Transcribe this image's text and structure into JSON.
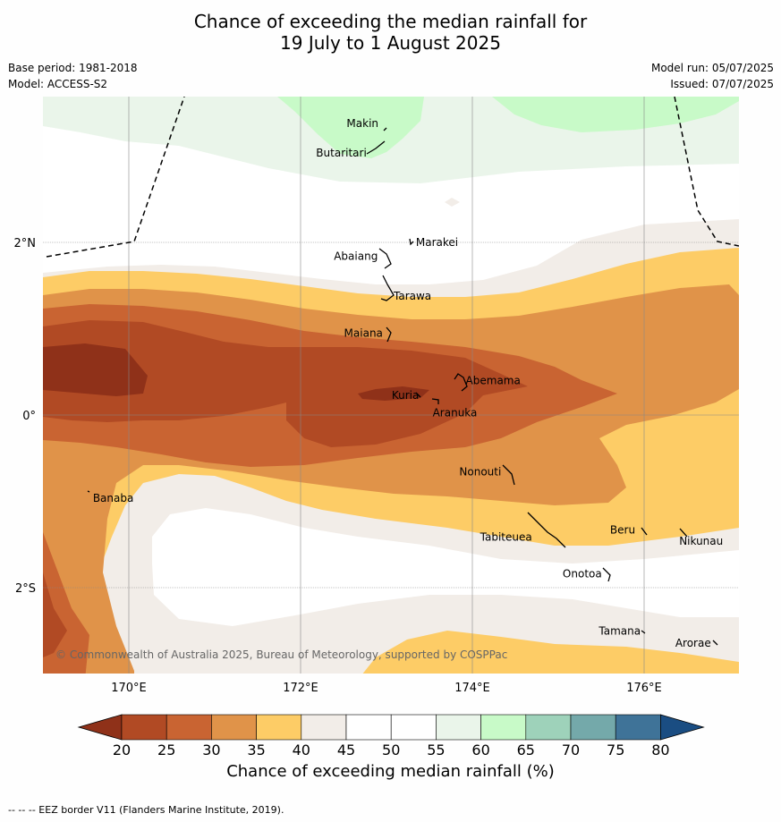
{
  "title_line1": "Chance of exceeding the median rainfall for",
  "title_line2": "19 July to 1 August 2025",
  "meta_left": [
    "Base period: 1981-2018",
    "Model: ACCESS-S2"
  ],
  "meta_right": [
    "Model run: 05/07/2025",
    "Issued: 07/07/2025"
  ],
  "copyright": "© Commonwealth of Australia 2025, Bureau of Meteorology, supported by COSPPac",
  "lon_ticks": [
    "170°E",
    "172°E",
    "174°E",
    "176°E"
  ],
  "lat_ticks": [
    "2°N",
    "0°",
    "2°S"
  ],
  "places": [
    {
      "name": "Makin",
      "lon": 172.99,
      "lat": 3.38
    },
    {
      "name": "Butaritari",
      "lon": 172.8,
      "lat": 3.08
    },
    {
      "name": "Marakei",
      "lon": 173.28,
      "lat": 2.0
    },
    {
      "name": "Abaiang",
      "lon": 172.92,
      "lat": 1.84
    },
    {
      "name": "Tarawa",
      "lon": 173.0,
      "lat": 1.38
    },
    {
      "name": "Maiana",
      "lon": 173.02,
      "lat": 0.95
    },
    {
      "name": "Abemama",
      "lon": 173.86,
      "lat": 0.4
    },
    {
      "name": "Kuria",
      "lon": 173.42,
      "lat": 0.23
    },
    {
      "name": "Aranuka",
      "lon": 173.6,
      "lat": 0.17
    },
    {
      "name": "Banaba",
      "lon": 169.54,
      "lat": -0.86
    },
    {
      "name": "Nonouti",
      "lon": 174.42,
      "lat": -0.66
    },
    {
      "name": "Tabiteuea",
      "lon": 174.82,
      "lat": -1.35
    },
    {
      "name": "Beru",
      "lon": 175.98,
      "lat": -1.33
    },
    {
      "name": "Nikunau",
      "lon": 176.45,
      "lat": -1.36
    },
    {
      "name": "Onotoa",
      "lon": 175.57,
      "lat": -1.84
    },
    {
      "name": "Tamana",
      "lon": 175.98,
      "lat": -2.5
    },
    {
      "name": "Arorae",
      "lon": 176.82,
      "lat": -2.64
    }
  ],
  "colorbar": {
    "ticks": [
      "20",
      "25",
      "30",
      "35",
      "40",
      "45",
      "50",
      "55",
      "60",
      "65",
      "70",
      "75",
      "80"
    ],
    "colors": [
      "#b14a24",
      "#c96432",
      "#e09349",
      "#fdcc66",
      "#f2ede8",
      "#ffffff",
      "#ffffff",
      "#eaf5ea",
      "#c8fac8",
      "#9ed2ba",
      "#74a9aa",
      "#3f7398"
    ],
    "low_color": "#8f3119",
    "high_color": "#1a4d82",
    "label": "Chance of exceeding median rainfall (%)"
  },
  "eez_note": "-- -- -- EEZ border V11 (Flanders Marine Institute, 2019)."
}
